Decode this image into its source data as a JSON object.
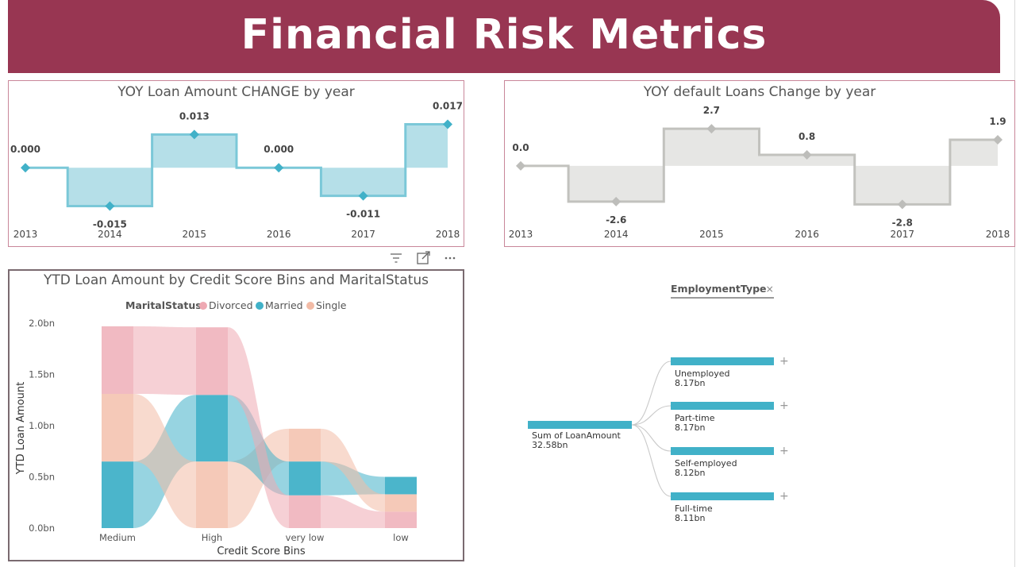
{
  "header": {
    "title": "Financial Risk Metrics"
  },
  "colors": {
    "banner": "#983652",
    "teal": "#41b1c8",
    "teal_fill": "#b5dfe8",
    "gray": "#c2c2be",
    "gray_fill": "#e6e6e4",
    "divorced": "#eea9b3",
    "married": "#41b1c8",
    "single": "#f2bba6"
  },
  "yoy_loan": {
    "title": "YOY Loan Amount CHANGE by year",
    "chart_data": {
      "type": "line",
      "step": true,
      "x": [
        "2013",
        "2014",
        "2015",
        "2016",
        "2017",
        "2018"
      ],
      "values": [
        0.0,
        -0.015,
        0.013,
        0.0,
        -0.011,
        0.017
      ],
      "labels": [
        "0.000",
        "-0.015",
        "0.013",
        "0.000",
        "-0.011",
        "0.017"
      ],
      "ylim": [
        -0.017,
        0.019
      ]
    }
  },
  "yoy_default": {
    "title": "YOY default Loans Change by year",
    "chart_data": {
      "type": "line",
      "step": true,
      "x": [
        "2013",
        "2014",
        "2015",
        "2016",
        "2017",
        "2018"
      ],
      "values": [
        0.0,
        -2.6,
        2.7,
        0.8,
        -2.8,
        1.9
      ],
      "labels": [
        "0.0",
        "-2.6",
        "2.7",
        "0.8",
        "-2.8",
        "1.9"
      ],
      "ylim": [
        -3.3,
        3.4
      ]
    }
  },
  "ribbon": {
    "title": "YTD Loan Amount by Credit Score Bins and MaritalStatus",
    "legend_title": "MaritalStatus",
    "chart_data": {
      "type": "area",
      "subtype": "ribbon",
      "categories": [
        "Medium",
        "High",
        "very low",
        "low"
      ],
      "series": [
        {
          "name": "Divorced",
          "values": [
            0.66,
            0.66,
            0.32,
            0.16
          ]
        },
        {
          "name": "Married",
          "values": [
            0.65,
            0.65,
            0.33,
            0.17
          ]
        },
        {
          "name": "Single",
          "values": [
            0.66,
            0.65,
            0.32,
            0.17
          ]
        }
      ],
      "order": [
        [
          "Married",
          "Single",
          "Divorced"
        ],
        [
          "Single",
          "Married",
          "Divorced"
        ],
        [
          "Divorced",
          "Married",
          "Single"
        ],
        [
          "Divorced",
          "Single",
          "Married"
        ]
      ],
      "xlabel": "Credit Score Bins",
      "ylabel": "YTD Loan Amount",
      "yticks": [
        "0.0bn",
        "0.5bn",
        "1.0bn",
        "1.5bn",
        "2.0bn"
      ],
      "ylim": [
        0,
        2.0
      ]
    }
  },
  "decomp": {
    "header": "EmploymentType",
    "close": "×",
    "root": {
      "label": "Sum of LoanAmount",
      "value": "32.58bn"
    },
    "children": [
      {
        "label": "Unemployed",
        "value": "8.17bn"
      },
      {
        "label": "Part-time",
        "value": "8.17bn"
      },
      {
        "label": "Self-employed",
        "value": "8.12bn"
      },
      {
        "label": "Full-time",
        "value": "8.11bn"
      }
    ],
    "expand": "+"
  }
}
